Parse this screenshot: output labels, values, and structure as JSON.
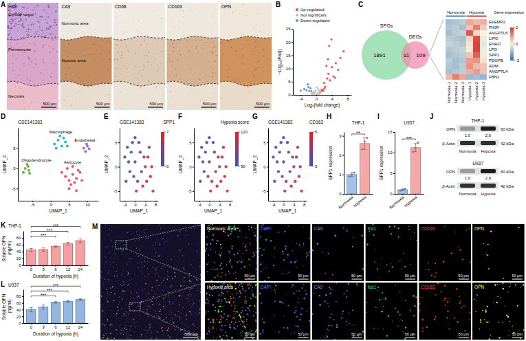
{
  "image_panels": {
    "A": {
      "label": "A",
      "images": [
        {
          "title": "H&E",
          "scale_bar": "500 μm",
          "regions": [
            "Cellular tumor",
            "Perinecrosis",
            "Necrosis"
          ]
        },
        {
          "title": "CA9",
          "scale_bar": "500 μm",
          "regions": [
            "Normoxic area",
            "Hypoxic area"
          ]
        },
        {
          "title": "CD68",
          "scale_bar": "500 μm"
        },
        {
          "title": "CD163",
          "scale_bar": "500 μm"
        },
        {
          "title": "OPN",
          "scale_bar": "500 μm"
        }
      ]
    },
    "M": {
      "label": "M",
      "overview_scale_bar": "500 μm",
      "rows": [
        {
          "area": "Normoxic area",
          "channels": [
            "DAPI",
            "CA9",
            "Iba1",
            "CD163",
            "OPN"
          ],
          "scale_bars": [
            "50 μm",
            "50 μm",
            "50 μm",
            "50 μm",
            "50 μm",
            "50 μm"
          ]
        },
        {
          "area": "Hypoxic area",
          "channels": [
            "DAPI",
            "CA9",
            "Iba1",
            "CD163",
            "OPN"
          ],
          "scale_bars": [
            "50 μm",
            "50 μm",
            "50 μm",
            "50 μm",
            "50 μm",
            "50 μm"
          ]
        }
      ]
    }
  },
  "western_blot": {
    "label": "J",
    "blots": [
      {
        "title": "THP-1",
        "target": "OPN",
        "target_size": "60 kDa",
        "control": "β-Actin",
        "control_size": "42 kDa",
        "lanes": [
          "Normoxia",
          "Hypoxia"
        ],
        "values": [
          1.0,
          2.6
        ],
        "value_labels": [
          "1.0",
          "2.6"
        ]
      },
      {
        "title": "U937",
        "target": "OPN",
        "target_size": "60 kDa",
        "control": "β-Actin",
        "control_size": "42 kDa",
        "lanes": [
          "Normoxia",
          "Hypoxia"
        ],
        "values": [
          1.0,
          2.9
        ],
        "value_labels": [
          "1.0",
          "2.9"
        ]
      }
    ]
  },
  "chart_data": [
    {
      "type": "scatter",
      "label": "B",
      "xlabel": "Log₂(fold change)",
      "ylabel": "−Log₁₀(Padj)",
      "xlim": [
        -6,
        9
      ],
      "xticks": [
        -4,
        0,
        4,
        8
      ],
      "ylim": [
        0,
        25
      ],
      "yticks": [
        0,
        5,
        10,
        15,
        20,
        25
      ],
      "legend": "top",
      "series": [
        {
          "name": "Up-regulated",
          "color": "#e8473f",
          "x": [
            1.5,
            2.0,
            2.3,
            2.8,
            3.1,
            3.5,
            4.0,
            4.4,
            5.0,
            5.6,
            6.2,
            7.0,
            1.8,
            2.6,
            3.3,
            3.9,
            4.8,
            2.1,
            1.4,
            3.0
          ],
          "values": [
            2.0,
            4.5,
            3.1,
            6.2,
            8.0,
            5.5,
            10.5,
            7.0,
            12.0,
            9.5,
            14.0,
            16.5,
            1.6,
            11.0,
            18.5,
            21.0,
            6.5,
            2.5,
            1.5,
            13.5
          ]
        },
        {
          "name": "Not significant",
          "color": "#bdbdbd",
          "x": [
            -0.5,
            0.2,
            0.6,
            -0.8,
            0.3,
            -0.2,
            0.9,
            -1.0,
            0.5,
            1.1,
            -0.4,
            0.1,
            0.7,
            -0.6,
            1.0,
            -1.2
          ],
          "values": [
            0.3,
            0.5,
            1.2,
            0.8,
            0.2,
            1.6,
            0.6,
            0.4,
            2.1,
            0.9,
            1.1,
            2.8,
            0.1,
            0.7,
            1.8,
            0.5
          ]
        },
        {
          "name": "Down-regulated",
          "color": "#4f8fd8",
          "x": [
            -1.5,
            -2.0,
            -2.5,
            -3.1,
            -1.8,
            -2.2,
            -1.3,
            -4.0
          ],
          "values": [
            2.5,
            3.0,
            1.8,
            2.2,
            1.5,
            4.0,
            1.4,
            1.6
          ]
        }
      ]
    },
    {
      "type": "venn",
      "label": "C",
      "sets": [
        {
          "name": "SPGs",
          "color": "#8fd9a8",
          "only": 1891
        },
        {
          "name": "DEGs",
          "color": "#f28bb0",
          "only": 109
        }
      ],
      "overlap": 11
    },
    {
      "type": "heatmap",
      "categories": [
        "Normoxia-1",
        "Normoxia-2",
        "Normoxia-3",
        "Hypoxia-1",
        "Hypoxia-2",
        "Hypoxia-3"
      ],
      "rows": [
        "EFEMP2",
        "PIGR",
        "ANGPTL6",
        "LIPG",
        "ENHO",
        "LPO",
        "SPP1",
        "PDGFB",
        "ADM",
        "ANGPTL4",
        "FBN2"
      ],
      "cells": [
        [
          -0.8,
          -0.7,
          -0.6,
          0.8,
          0.6,
          0.7
        ],
        [
          -0.7,
          -0.6,
          -0.8,
          0.5,
          1.2,
          0.4
        ],
        [
          -0.8,
          -0.6,
          -0.5,
          1.6,
          0.3,
          0.0
        ],
        [
          -0.6,
          -0.7,
          -0.8,
          0.3,
          1.7,
          0.1
        ],
        [
          -0.5,
          -0.6,
          -0.7,
          0.2,
          1.8,
          -0.2
        ],
        [
          -0.7,
          -0.6,
          -0.5,
          0.1,
          1.8,
          -0.1
        ],
        [
          -0.8,
          -0.7,
          -0.6,
          0.5,
          1.5,
          0.1
        ],
        [
          -0.6,
          -0.8,
          -0.7,
          0.9,
          1.0,
          0.2
        ],
        [
          -0.7,
          -0.8,
          -0.6,
          1.0,
          0.6,
          0.5
        ],
        [
          -0.8,
          -0.7,
          -0.6,
          0.7,
          0.9,
          0.5
        ],
        [
          0.6,
          1.2,
          0.8,
          -0.9,
          -0.8,
          -0.9
        ]
      ],
      "groups": [
        {
          "name": "Normoxia",
          "color": "#4f7fc9",
          "members": [
            "Normoxia-1",
            "Normoxia-2",
            "Normoxia-3"
          ]
        },
        {
          "name": "Hypoxia",
          "color": "#d9403a",
          "members": [
            "Hypoxia-1",
            "Hypoxia-2",
            "Hypoxia-3"
          ]
        }
      ],
      "colorbar": {
        "title": "Gene expression",
        "range": [
          -2,
          2
        ],
        "ticks": [
          2,
          0,
          -2
        ]
      }
    },
    {
      "type": "scatter",
      "label": "D",
      "title": "GSE141383",
      "xlabel": "UMAP_1",
      "ylabel": "UMAP_2",
      "xlim": [
        -9,
        13
      ],
      "xticks": [
        -5,
        0,
        5,
        10
      ],
      "ylim": [
        -8,
        10
      ],
      "yticks": [
        -5,
        0,
        5
      ],
      "series": [
        {
          "name": "Macrophage",
          "color": "#2bb9c1",
          "x": [
            1,
            2,
            3,
            4,
            2.5,
            3.5,
            1.5,
            4.5
          ],
          "values": [
            6,
            7,
            5.5,
            6.5,
            8,
            7.5,
            5,
            5.5
          ]
        },
        {
          "name": "Oligodendrocyte",
          "color": "#6db33f",
          "x": [
            -7,
            -6.5,
            -6,
            -7.5,
            -6.2,
            -5.8
          ],
          "values": [
            0,
            1,
            -0.5,
            -1,
            0.5,
            -1.2
          ]
        },
        {
          "name": "Endothelial",
          "color": "#9a6fd8",
          "x": [
            9,
            10,
            9.5,
            10.5,
            9.8
          ],
          "values": [
            5,
            5.5,
            4.2,
            4.8,
            6
          ]
        },
        {
          "name": "Astrocyte",
          "color": "#e8527a",
          "x": [
            3,
            4,
            5,
            6,
            7,
            8,
            4.5,
            5.5,
            6.5,
            7.5,
            5,
            6,
            7,
            8.5
          ],
          "values": [
            -1,
            -2,
            -3,
            -1.5,
            -2.5,
            -1,
            0,
            -4,
            -3.5,
            -0.5,
            -5,
            0.5,
            -5.5,
            -3
          ]
        }
      ]
    },
    {
      "type": "scatter",
      "label": "E",
      "title": "GSE141383",
      "xlabel": "UMAP_1",
      "ylabel": "UMAP_2",
      "xlim": [
        -6,
        9
      ],
      "xticks": [
        -4,
        0,
        4,
        8
      ],
      "ylim": [
        -7,
        8
      ],
      "yticks": [
        -5,
        0,
        5
      ],
      "x": [
        -4,
        -3,
        -2,
        -1,
        0,
        1,
        2,
        3,
        4,
        5,
        6,
        7,
        -3.5,
        -2.5,
        -1.5,
        -0.5,
        0.5,
        1.5,
        2.5,
        3.5,
        4.5,
        5.5,
        6.5,
        0
      ],
      "values": [
        2,
        4,
        -1,
        5,
        1,
        -3,
        3,
        -4,
        0,
        2,
        -2,
        -5,
        -3,
        1,
        3,
        -2,
        -5,
        5,
        -1,
        2,
        -3,
        4,
        0,
        6
      ],
      "color_values": [
        1,
        0.5,
        2,
        1,
        3,
        2.5,
        4,
        6,
        5,
        6.5,
        7,
        6,
        1.5,
        1,
        0.5,
        2,
        5,
        1,
        3,
        4,
        6,
        5,
        6.5,
        0.5
      ],
      "colorbar": {
        "title": "SPP1",
        "range": [
          0,
          7
        ],
        "ticks": [
          0,
          7
        ]
      }
    },
    {
      "type": "scatter",
      "label": "F",
      "xlabel": "UMAP_1",
      "ylabel": "UMAP_2",
      "xlim": [
        -6,
        9
      ],
      "xticks": [
        -4,
        0,
        4,
        8
      ],
      "ylim": [
        -7,
        8
      ],
      "yticks": [
        -5,
        0,
        5
      ],
      "x": [
        -4,
        -3,
        -2,
        -1,
        0,
        1,
        2,
        3,
        4,
        5,
        6,
        7,
        -3.5,
        -2.5,
        -1.5,
        -0.5,
        0.5,
        1.5,
        2.5,
        3.5,
        4.5,
        5.5,
        6.5,
        0
      ],
      "values": [
        2,
        4,
        -1,
        5,
        1,
        -3,
        3,
        -4,
        0,
        2,
        -2,
        -5,
        -3,
        1,
        3,
        -2,
        -5,
        5,
        -1,
        2,
        -3,
        4,
        0,
        6
      ],
      "color_values": [
        92,
        95,
        98,
        93,
        100,
        108,
        96,
        115,
        110,
        112,
        118,
        119,
        100,
        94,
        92,
        105,
        116,
        95,
        104,
        109,
        117,
        113,
        115,
        91
      ],
      "colorbar": {
        "title": "Hypoxia score",
        "range": [
          90,
          120
        ],
        "ticks": [
          90,
          120
        ]
      }
    },
    {
      "type": "scatter",
      "label": "G",
      "title": "GSE141383",
      "xlabel": "UMAP_1",
      "ylabel": "UMAP_2",
      "xlim": [
        -6,
        9
      ],
      "xticks": [
        -4,
        0,
        4,
        8
      ],
      "ylim": [
        -7,
        8
      ],
      "yticks": [
        -5,
        0,
        5
      ],
      "x": [
        -4,
        -3,
        -2,
        -1,
        0,
        1,
        2,
        3,
        4,
        5,
        6,
        7,
        -3.5,
        -2.5,
        -1.5,
        -0.5,
        0.5,
        1.5,
        2.5,
        3.5,
        4.5,
        5.5,
        6.5,
        0
      ],
      "values": [
        2,
        4,
        -1,
        5,
        1,
        -3,
        3,
        -4,
        0,
        2,
        -2,
        -5,
        -3,
        1,
        3,
        -2,
        -5,
        5,
        -1,
        2,
        -3,
        4,
        0,
        6
      ],
      "color_values": [
        0.5,
        1,
        1,
        0.5,
        2,
        3,
        1.5,
        4.5,
        3,
        4,
        4.8,
        4,
        2,
        1,
        0.5,
        2.5,
        4,
        1,
        2,
        3,
        4.5,
        3.5,
        4,
        0.5
      ],
      "colorbar": {
        "title": "CD163",
        "range": [
          0,
          5
        ],
        "ticks": [
          0,
          5
        ]
      }
    },
    {
      "type": "bar",
      "label": "H",
      "title": "THP-1",
      "ylabel": "SPP1 expression",
      "categories": [
        "Normoxia",
        "Hypoxia"
      ],
      "values": [
        1.0,
        2.6
      ],
      "errors": [
        0.1,
        0.3
      ],
      "points": [
        [
          0.9,
          1.0,
          1.1
        ],
        [
          2.3,
          2.7,
          2.9
        ]
      ],
      "colors": [
        "#6f9fd8",
        "#ee7b7b"
      ],
      "ylim": [
        0,
        3.2
      ],
      "yticks": [
        0,
        1,
        2,
        3
      ],
      "significance": [
        {
          "pair": [
            "Normoxia",
            "Hypoxia"
          ],
          "label": "**"
        }
      ]
    },
    {
      "type": "bar",
      "label": "I",
      "title": "U937",
      "ylabel": "SPP1 expression",
      "categories": [
        "Normoxia",
        "Hypoxia"
      ],
      "values": [
        1.0,
        11.2
      ],
      "errors": [
        0.2,
        1.0
      ],
      "points": [
        [
          0.8,
          1.0,
          1.2
        ],
        [
          10.2,
          11.0,
          12.4
        ]
      ],
      "colors": [
        "#6f9fd8",
        "#ee7b7b"
      ],
      "ylim": [
        0,
        15
      ],
      "yticks": [
        0,
        5,
        10,
        15
      ],
      "significance": [
        {
          "pair": [
            "Normoxia",
            "Hypoxia"
          ],
          "label": "***"
        }
      ]
    },
    {
      "type": "bar",
      "label": "K",
      "title": "THP-1",
      "ylabel": "Soluble OPN (ng/ml)",
      "xlabel": "Duration of hypoxia (h)",
      "categories": [
        "0",
        "3",
        "6",
        "12",
        "24"
      ],
      "values": [
        45,
        46,
        55,
        63,
        72
      ],
      "errors": [
        4,
        5,
        3,
        4,
        5
      ],
      "color": "#e87070",
      "ylim": [
        0,
        100
      ],
      "yticks": [
        0,
        20,
        40,
        60,
        80
      ],
      "significance": [
        {
          "pair": [
            "0",
            "6"
          ],
          "label": "***"
        },
        {
          "pair": [
            "0",
            "12"
          ],
          "label": "***"
        },
        {
          "pair": [
            "0",
            "24"
          ],
          "label": "***"
        }
      ]
    },
    {
      "type": "bar",
      "label": "L",
      "title": "U937",
      "ylabel": "Soluble OPN (ng/ml)",
      "xlabel": "Duration of hypoxia (h)",
      "categories": [
        "0",
        "3",
        "6",
        "12",
        "24"
      ],
      "values": [
        40,
        48,
        62,
        65,
        70
      ],
      "errors": [
        6,
        6,
        3,
        3,
        3
      ],
      "color": "#5b8fd0",
      "ylim": [
        0,
        100
      ],
      "yticks": [
        0,
        20,
        40,
        60,
        80
      ],
      "significance": [
        {
          "pair": [
            "0",
            "6"
          ],
          "label": "***"
        },
        {
          "pair": [
            "0",
            "12"
          ],
          "label": "***"
        },
        {
          "pair": [
            "0",
            "24"
          ],
          "label": "***"
        }
      ]
    }
  ]
}
